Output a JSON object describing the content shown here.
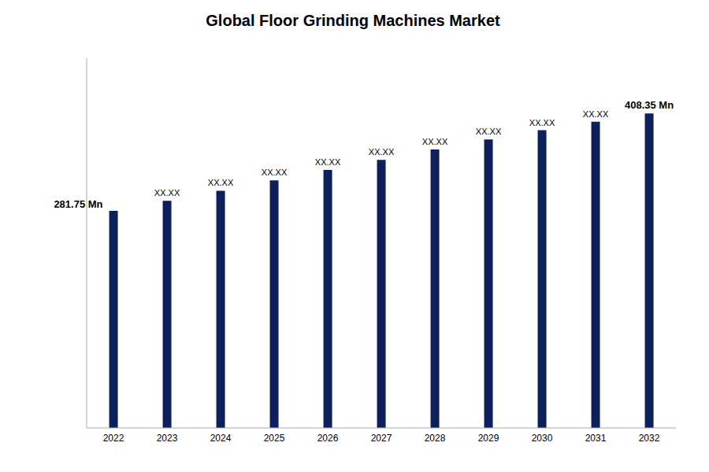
{
  "chart_data": {
    "type": "bar",
    "title": "Global Floor Grinding Machines Market",
    "categories": [
      "2022",
      "2023",
      "2024",
      "2025",
      "2026",
      "2027",
      "2028",
      "2029",
      "2030",
      "2031",
      "2032"
    ],
    "values": [
      281.75,
      295.0,
      308.0,
      321.5,
      335.0,
      348.0,
      361.5,
      374.5,
      386.5,
      397.5,
      408.35
    ],
    "value_labels": [
      "281.75 Mn",
      "XX.XX",
      "XX.XX",
      "XX.XX",
      "XX.XX",
      "XX.XX",
      "XX.XX",
      "XX.XX",
      "XX.XX",
      "XX.XX",
      "408.35 Mn"
    ],
    "color": "#0d1f5c",
    "ylim": [
      0,
      480
    ],
    "grid": false,
    "data_labels": true,
    "tick_labels": "x"
  }
}
